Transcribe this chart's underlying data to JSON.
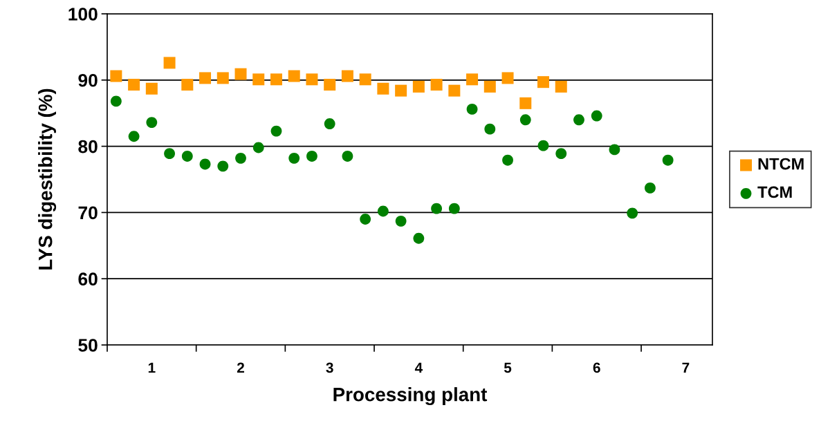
{
  "chart_data": {
    "type": "scatter",
    "xlabel": "Processing plant",
    "ylabel": "LYS digestibility (%)",
    "xlim": [
      0.5,
      7.3
    ],
    "ylim": [
      50,
      100
    ],
    "yticks": [
      50,
      60,
      70,
      80,
      90,
      100
    ],
    "xticks": [
      {
        "value": 0.5,
        "label": null
      },
      {
        "value": 1,
        "label": "1"
      },
      {
        "value": 1.5,
        "label": null
      },
      {
        "value": 2,
        "label": "2"
      },
      {
        "value": 2.5,
        "label": null
      },
      {
        "value": 3,
        "label": "3"
      },
      {
        "value": 3.5,
        "label": null
      },
      {
        "value": 4,
        "label": "4"
      },
      {
        "value": 4.5,
        "label": null
      },
      {
        "value": 5,
        "label": "5"
      },
      {
        "value": 5.5,
        "label": null
      },
      {
        "value": 6,
        "label": "6"
      },
      {
        "value": 6.5,
        "label": null
      },
      {
        "value": 7,
        "label": "7"
      }
    ],
    "grid": "y",
    "legend": "right",
    "series": [
      {
        "name": "NTCM",
        "color": "#ff9900",
        "marker": "square",
        "x": [
          0.6,
          0.8,
          1.0,
          1.2,
          1.4,
          1.6,
          1.8,
          2.0,
          2.2,
          2.4,
          2.6,
          2.8,
          3.0,
          3.2,
          3.4,
          3.6,
          3.8,
          4.0,
          4.2,
          4.4,
          4.6,
          4.8,
          5.0,
          5.2,
          5.4,
          5.6
        ],
        "values": [
          90.6,
          89.3,
          88.7,
          92.6,
          89.3,
          90.3,
          90.3,
          90.9,
          90.1,
          90.1,
          90.6,
          90.1,
          89.3,
          90.6,
          90.1,
          88.7,
          88.4,
          89.0,
          89.3,
          88.4,
          90.1,
          89.0,
          90.3,
          86.5,
          89.7,
          89.0
        ]
      },
      {
        "name": "TCM",
        "color": "#008000",
        "marker": "circle",
        "x": [
          0.6,
          0.8,
          1.0,
          1.2,
          1.4,
          1.6,
          1.8,
          2.0,
          2.2,
          2.4,
          2.6,
          2.8,
          3.0,
          3.2,
          3.4,
          3.6,
          3.8,
          4.0,
          4.2,
          4.4,
          4.6,
          4.8,
          5.0,
          5.2,
          5.4,
          5.6,
          5.8,
          6.0,
          6.2,
          6.4,
          6.6,
          6.8
        ],
        "values": [
          86.8,
          81.5,
          83.6,
          78.9,
          78.5,
          77.3,
          77.0,
          78.2,
          79.8,
          82.3,
          78.2,
          78.5,
          83.4,
          78.5,
          69.0,
          70.2,
          68.7,
          66.1,
          70.6,
          70.6,
          85.6,
          82.6,
          77.9,
          84.0,
          80.1,
          78.9,
          84.0,
          84.6,
          79.5,
          69.9,
          73.7,
          77.9
        ]
      }
    ]
  }
}
